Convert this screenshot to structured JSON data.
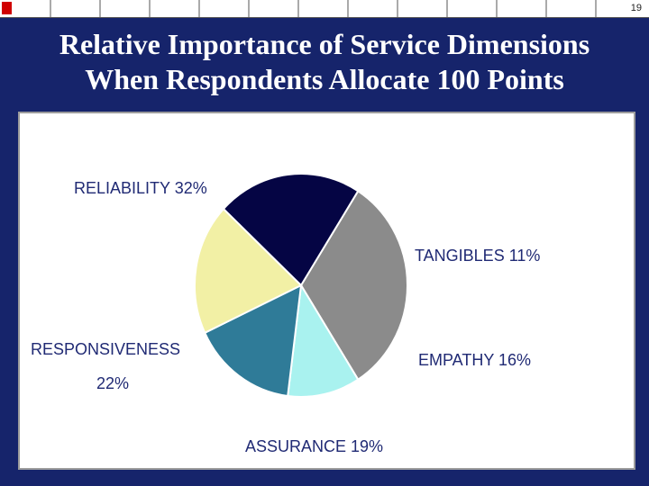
{
  "slide": {
    "page_number": "19",
    "title_line_1": "Relative Importance of Service Dimensions",
    "title_line_2": "When Respondents Allocate 100 Points"
  },
  "colors": {
    "background": "#16246b",
    "label_text": "#202a74",
    "reliability": "#8b8b8b",
    "tangibles": "#a9f2ef",
    "empathy": "#2f7b98",
    "assurance": "#f2f0a5",
    "responsiveness": "#050544"
  },
  "chart_data": {
    "type": "pie",
    "title": "",
    "slices": [
      {
        "key": "reliability",
        "name": "RELIABILITY",
        "value": 32,
        "label": "RELIABILITY 32%",
        "color": "#8b8b8b"
      },
      {
        "key": "tangibles",
        "name": "TANGIBLES",
        "value": 11,
        "label": "TANGIBLES 11%",
        "color": "#a9f2ef"
      },
      {
        "key": "empathy",
        "name": "EMPATHY",
        "value": 16,
        "label": "EMPATHY 16%",
        "color": "#2f7b98"
      },
      {
        "key": "assurance",
        "name": "ASSURANCE",
        "value": 19,
        "label": "ASSURANCE 19%",
        "color": "#f2f0a5"
      },
      {
        "key": "responsiveness",
        "name": "RESPONSIVENESS",
        "value": 22,
        "label_line_1": "RESPONSIVENESS",
        "label_line_2": "22%",
        "color": "#050544"
      }
    ]
  }
}
